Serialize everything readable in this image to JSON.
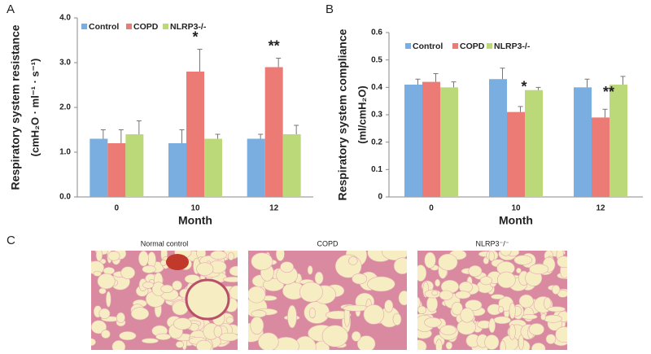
{
  "chart_data": [
    {
      "type": "bar",
      "panel_label": "A",
      "ylabel": [
        "Respiratory system resistance",
        "(cmH₂O · ml⁻¹ · s⁻¹)"
      ],
      "xlabel": "Month",
      "categories": [
        "0",
        "10",
        "12"
      ],
      "series": [
        {
          "name": "Control",
          "color": "#7aaee0",
          "values": [
            1.3,
            1.2,
            1.3
          ],
          "errors": [
            0.2,
            0.3,
            0.1
          ]
        },
        {
          "name": "COPD",
          "color": "#ec7b76",
          "values": [
            1.2,
            2.8,
            2.9
          ],
          "errors": [
            0.3,
            0.5,
            0.2
          ]
        },
        {
          "name": "NLRP3-/-",
          "color": "#bcd979",
          "values": [
            1.4,
            1.3,
            1.4
          ],
          "errors": [
            0.3,
            0.1,
            0.2
          ]
        }
      ],
      "annotations": [
        "*",
        "**"
      ],
      "ylim": [
        0,
        4
      ],
      "yticks": [
        {
          "value": 0,
          "label": "0.0"
        },
        {
          "value": 1,
          "label": "1.0"
        },
        {
          "value": 2,
          "label": "2.0"
        },
        {
          "value": 3,
          "label": "3.0"
        },
        {
          "value": 4,
          "label": "4.0"
        }
      ],
      "grid": false,
      "legend": "top"
    },
    {
      "type": "bar",
      "panel_label": "B",
      "ylabel": [
        "Respiratory system compliance",
        "(ml/cmH₂O)"
      ],
      "xlabel": "Month",
      "categories": [
        "0",
        "10",
        "12"
      ],
      "series": [
        {
          "name": "Control",
          "color": "#7aaee0",
          "values": [
            0.41,
            0.43,
            0.4
          ],
          "errors": [
            0.02,
            0.04,
            0.03
          ]
        },
        {
          "name": "COPD",
          "color": "#ec7b76",
          "values": [
            0.42,
            0.31,
            0.29
          ],
          "errors": [
            0.03,
            0.02,
            0.03
          ]
        },
        {
          "name": "NLRP3-/-",
          "color": "#bcd979",
          "values": [
            0.4,
            0.39,
            0.41
          ],
          "errors": [
            0.02,
            0.01,
            0.03
          ]
        }
      ],
      "annotations": [
        "*",
        "**"
      ],
      "ylim": [
        0,
        0.6
      ],
      "yticks": [
        0,
        0.1,
        0.2,
        0.3,
        0.4,
        0.5,
        0.6
      ],
      "grid": false,
      "legend": "top"
    }
  ],
  "panel_c": {
    "label": "C",
    "images": [
      "Normal control",
      "COPD",
      "NLRP3⁻/⁻"
    ]
  }
}
